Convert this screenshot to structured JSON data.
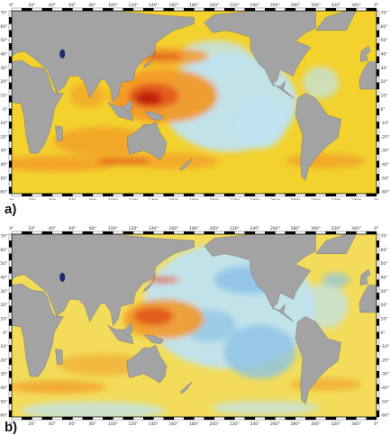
{
  "panels": [
    {
      "label": "a)",
      "lon_ticks": [
        "0°",
        "20°",
        "40°",
        "60°",
        "80°",
        "100°",
        "120°",
        "140°",
        "160°",
        "180°",
        "200°",
        "220°",
        "240°",
        "260°",
        "280°",
        "300°",
        "320°",
        "340°",
        "0°"
      ],
      "lat_ticks": [
        "70°",
        "60°",
        "50°",
        "40°",
        "30°",
        "20°",
        "10°",
        "0°",
        "-10°",
        "-20°",
        "-30°",
        "-40°",
        "-50°",
        "-60°"
      ]
    },
    {
      "label": "b)",
      "lon_ticks": [
        "0°",
        "20°",
        "40°",
        "60°",
        "80°",
        "100°",
        "120°",
        "140°",
        "160°",
        "180°",
        "200°",
        "220°",
        "240°",
        "260°",
        "280°",
        "300°",
        "320°",
        "340°",
        "0°"
      ],
      "lat_ticks": [
        "70°",
        "60°",
        "50°",
        "40°",
        "30°",
        "20°",
        "10°",
        "0°",
        "-10°",
        "-20°",
        "-30°",
        "-40°",
        "-50°",
        "-60°"
      ]
    }
  ],
  "colors": {
    "land": "#a3a3a3",
    "land_edge": "#6f6f6f",
    "ocean_base_a": "#f3d22e",
    "ocean_base_b": "#f2dc5a",
    "high": "#c01f10",
    "mid_high": "#e35a1c",
    "mid": "#f29a28",
    "low": "#bfe3f1",
    "lower": "#8cc3e6",
    "lake": "#1a2a6a"
  },
  "map_extent": {
    "lon_range": [
      0,
      360
    ],
    "lat_range": [
      -65,
      75
    ]
  }
}
